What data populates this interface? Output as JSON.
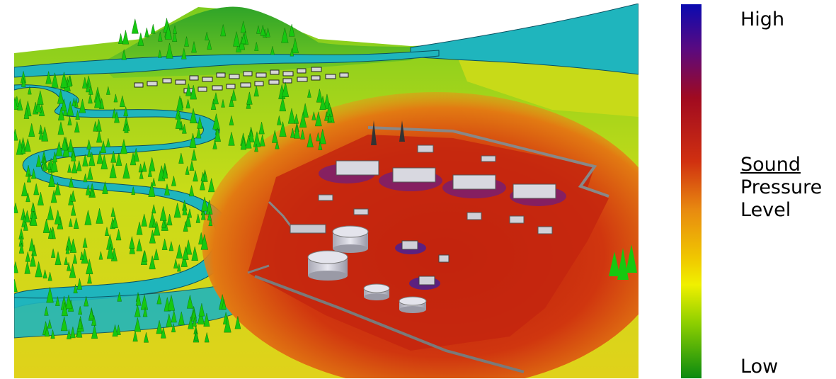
{
  "legend": {
    "high_label": "High",
    "low_label": "Low",
    "title_line1": "Sound",
    "title_line2": "Pressure",
    "title_line3": "Level",
    "gradient_stops": [
      {
        "at": 0.0,
        "color": "#0a0ab0"
      },
      {
        "at": 0.12,
        "color": "#5a0a80"
      },
      {
        "at": 0.25,
        "color": "#a00a20"
      },
      {
        "at": 0.42,
        "color": "#d03010"
      },
      {
        "at": 0.55,
        "color": "#e88a10"
      },
      {
        "at": 0.68,
        "color": "#f0c800"
      },
      {
        "at": 0.75,
        "color": "#f0f000"
      },
      {
        "at": 0.85,
        "color": "#90d000"
      },
      {
        "at": 1.0,
        "color": "#0a8a10"
      }
    ]
  },
  "colors": {
    "river": "#1fb5bd",
    "hill": "#4cb82a",
    "field_near": "#b8d81a",
    "field_hot": "#d03a10",
    "plant_ground": "#c82a10",
    "fence": "#808080",
    "tree": "#16c810",
    "tank": "#c8c8d0"
  }
}
